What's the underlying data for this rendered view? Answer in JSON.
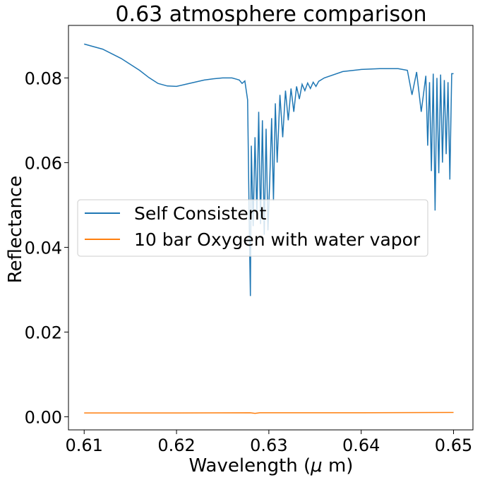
{
  "chart_data": {
    "type": "line",
    "title": "0.63 atmosphere comparison",
    "xlabel": "Wavelength ($\\mu$ m)",
    "ylabel": "Reflectance",
    "xlim": [
      0.6083,
      0.6521
    ],
    "ylim": [
      -0.0031,
      0.0924
    ],
    "xticks": [
      0.61,
      0.62,
      0.63,
      0.64,
      0.65
    ],
    "xtick_labels": [
      "0.61",
      "0.62",
      "0.63",
      "0.64",
      "0.65"
    ],
    "yticks": [
      0.0,
      0.02,
      0.04,
      0.06,
      0.08
    ],
    "ytick_labels": [
      "0.00",
      "0.02",
      "0.04",
      "0.06",
      "0.08"
    ],
    "grid": false,
    "legend": {
      "position": "center-left"
    },
    "series": [
      {
        "name": "Self Consistent",
        "color": "#1f77b4",
        "x": [
          0.61,
          0.612,
          0.614,
          0.616,
          0.617,
          0.618,
          0.619,
          0.62,
          0.621,
          0.622,
          0.623,
          0.624,
          0.625,
          0.626,
          0.6265,
          0.6268,
          0.6271,
          0.6274,
          0.6277,
          0.6279,
          0.628,
          0.6281,
          0.6283,
          0.6285,
          0.6287,
          0.6289,
          0.6291,
          0.6293,
          0.6295,
          0.6297,
          0.6299,
          0.6301,
          0.6303,
          0.6305,
          0.6307,
          0.6309,
          0.6312,
          0.6315,
          0.6318,
          0.6321,
          0.6324,
          0.6327,
          0.633,
          0.6333,
          0.6336,
          0.6339,
          0.6342,
          0.6345,
          0.6348,
          0.6351,
          0.6354,
          0.636,
          0.638,
          0.64,
          0.642,
          0.644,
          0.645,
          0.6455,
          0.646,
          0.6465,
          0.647,
          0.6472,
          0.6474,
          0.6476,
          0.6478,
          0.648,
          0.6482,
          0.6484,
          0.6486,
          0.6488,
          0.649,
          0.6492,
          0.6494,
          0.6496,
          0.6498,
          0.65
        ],
        "y": [
          0.088,
          0.0868,
          0.0846,
          0.0818,
          0.0801,
          0.0787,
          0.0781,
          0.078,
          0.0785,
          0.079,
          0.0795,
          0.0798,
          0.08,
          0.08,
          0.0797,
          0.0795,
          0.0787,
          0.0793,
          0.0748,
          0.042,
          0.0285,
          0.064,
          0.045,
          0.066,
          0.0475,
          0.072,
          0.0455,
          0.07,
          0.043,
          0.068,
          0.044,
          0.056,
          0.0705,
          0.051,
          0.074,
          0.06,
          0.076,
          0.066,
          0.077,
          0.07,
          0.0775,
          0.072,
          0.078,
          0.075,
          0.0785,
          0.077,
          0.0788,
          0.0775,
          0.079,
          0.078,
          0.0792,
          0.08,
          0.0815,
          0.082,
          0.0822,
          0.0822,
          0.0818,
          0.076,
          0.0814,
          0.072,
          0.0805,
          0.064,
          0.079,
          0.058,
          0.081,
          0.0487,
          0.08,
          0.0575,
          0.0808,
          0.06,
          0.0795,
          0.062,
          0.079,
          0.056,
          0.081,
          0.081
        ]
      },
      {
        "name": "10 bar Oxygen with water vapor",
        "color": "#ff7f0e",
        "x": [
          0.61,
          0.62,
          0.628,
          0.6285,
          0.629,
          0.64,
          0.65
        ],
        "y": [
          0.0009,
          0.0009,
          0.00095,
          0.0008,
          0.00095,
          0.00095,
          0.001
        ]
      }
    ]
  }
}
